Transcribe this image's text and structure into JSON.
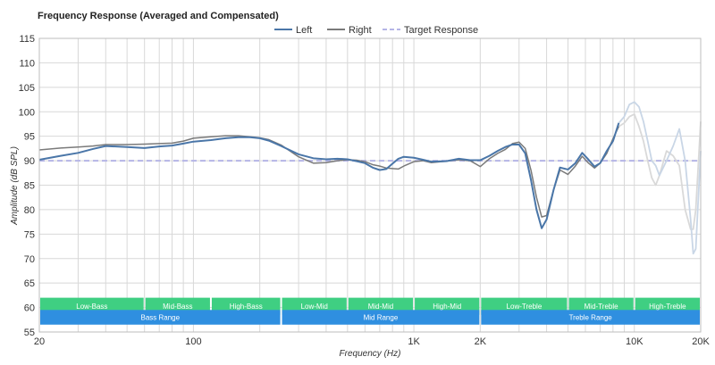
{
  "chart_data": {
    "type": "line",
    "title": "Frequency Response (Averaged and Compensated)",
    "xlabel": "Frequency (Hz)",
    "ylabel": "Amplitude (dB SPL)",
    "x_scale": "log",
    "xlim": [
      20,
      20000
    ],
    "ylim": [
      55,
      115
    ],
    "grid": true,
    "legend_position": "top-center",
    "x_tick_labels": [
      {
        "value": 20,
        "label": "20"
      },
      {
        "value": 100,
        "label": "100"
      },
      {
        "value": 1000,
        "label": "1K"
      },
      {
        "value": 2000,
        "label": "2K"
      },
      {
        "value": 10000,
        "label": "10K"
      },
      {
        "value": 20000,
        "label": "20K"
      }
    ],
    "y_ticks": [
      55,
      60,
      65,
      70,
      75,
      80,
      85,
      90,
      95,
      100,
      105,
      110,
      115
    ],
    "series": [
      {
        "name": "Left",
        "color": "#4a76a8",
        "faded_color": "#c9d6e6",
        "faded_from": 8500,
        "points": [
          [
            20,
            90.2
          ],
          [
            25,
            91
          ],
          [
            30,
            91.6
          ],
          [
            35,
            92.4
          ],
          [
            40,
            93
          ],
          [
            50,
            92.8
          ],
          [
            60,
            92.6
          ],
          [
            70,
            92.9
          ],
          [
            80,
            93.1
          ],
          [
            90,
            93.5
          ],
          [
            100,
            93.9
          ],
          [
            120,
            94.2
          ],
          [
            140,
            94.6
          ],
          [
            160,
            94.8
          ],
          [
            180,
            94.8
          ],
          [
            200,
            94.6
          ],
          [
            220,
            94.1
          ],
          [
            250,
            93
          ],
          [
            300,
            91.3
          ],
          [
            350,
            90.5
          ],
          [
            400,
            90.3
          ],
          [
            450,
            90.4
          ],
          [
            500,
            90.3
          ],
          [
            550,
            89.9
          ],
          [
            600,
            89.5
          ],
          [
            650,
            88.6
          ],
          [
            700,
            88.1
          ],
          [
            750,
            88.3
          ],
          [
            800,
            89.4
          ],
          [
            850,
            90.4
          ],
          [
            900,
            90.8
          ],
          [
            1000,
            90.6
          ],
          [
            1100,
            90.2
          ],
          [
            1200,
            89.8
          ],
          [
            1400,
            89.9
          ],
          [
            1600,
            90.4
          ],
          [
            1800,
            90.1
          ],
          [
            2000,
            90.1
          ],
          [
            2200,
            91
          ],
          [
            2400,
            92
          ],
          [
            2600,
            92.8
          ],
          [
            2800,
            93.3
          ],
          [
            3000,
            93.3
          ],
          [
            3200,
            91.5
          ],
          [
            3400,
            86
          ],
          [
            3600,
            80
          ],
          [
            3800,
            76.2
          ],
          [
            4000,
            78
          ],
          [
            4300,
            84
          ],
          [
            4600,
            88.6
          ],
          [
            5000,
            88.2
          ],
          [
            5400,
            89.5
          ],
          [
            5800,
            91.6
          ],
          [
            6200,
            90.2
          ],
          [
            6600,
            88.8
          ],
          [
            7000,
            89.5
          ],
          [
            7500,
            92
          ],
          [
            8000,
            94
          ],
          [
            8500,
            97.7
          ],
          [
            9000,
            99
          ],
          [
            9500,
            101.5
          ],
          [
            10000,
            102
          ],
          [
            10500,
            101
          ],
          [
            11000,
            98
          ],
          [
            11500,
            94
          ],
          [
            12000,
            90
          ],
          [
            12500,
            89
          ],
          [
            13000,
            87
          ],
          [
            14000,
            90
          ],
          [
            15000,
            93
          ],
          [
            16000,
            96.5
          ],
          [
            17000,
            90
          ],
          [
            18000,
            78
          ],
          [
            18500,
            71
          ],
          [
            19000,
            72
          ],
          [
            20000,
            92
          ]
        ]
      },
      {
        "name": "Right",
        "color": "#7a7a7a",
        "faded_color": "#d9d9d9",
        "faded_from": 8500,
        "points": [
          [
            20,
            92.2
          ],
          [
            25,
            92.6
          ],
          [
            30,
            92.8
          ],
          [
            35,
            93
          ],
          [
            40,
            93.3
          ],
          [
            50,
            93.3
          ],
          [
            60,
            93.4
          ],
          [
            70,
            93.5
          ],
          [
            80,
            93.6
          ],
          [
            90,
            94
          ],
          [
            100,
            94.6
          ],
          [
            120,
            94.9
          ],
          [
            140,
            95.1
          ],
          [
            160,
            95.1
          ],
          [
            180,
            94.9
          ],
          [
            200,
            94.7
          ],
          [
            220,
            94.3
          ],
          [
            250,
            93.2
          ],
          [
            300,
            90.8
          ],
          [
            350,
            89.5
          ],
          [
            400,
            89.6
          ],
          [
            450,
            90
          ],
          [
            500,
            90.2
          ],
          [
            550,
            90.1
          ],
          [
            600,
            89.8
          ],
          [
            650,
            89.2
          ],
          [
            700,
            88.9
          ],
          [
            750,
            88.5
          ],
          [
            800,
            88.4
          ],
          [
            850,
            88.3
          ],
          [
            900,
            88.9
          ],
          [
            1000,
            89.8
          ],
          [
            1100,
            90
          ],
          [
            1200,
            89.6
          ],
          [
            1400,
            89.9
          ],
          [
            1600,
            90.2
          ],
          [
            1800,
            90
          ],
          [
            2000,
            88.8
          ],
          [
            2200,
            90.4
          ],
          [
            2400,
            91.5
          ],
          [
            2600,
            92.3
          ],
          [
            2800,
            93.5
          ],
          [
            3000,
            93.8
          ],
          [
            3200,
            92.5
          ],
          [
            3400,
            88
          ],
          [
            3600,
            82.5
          ],
          [
            3800,
            78.5
          ],
          [
            4000,
            78.8
          ],
          [
            4300,
            84
          ],
          [
            4600,
            88.1
          ],
          [
            5000,
            87.2
          ],
          [
            5400,
            88.9
          ],
          [
            5800,
            90.9
          ],
          [
            6200,
            89.5
          ],
          [
            6600,
            88.5
          ],
          [
            7000,
            89.5
          ],
          [
            7500,
            91.5
          ],
          [
            8000,
            94.5
          ],
          [
            8500,
            97
          ],
          [
            9000,
            97.7
          ],
          [
            9500,
            99
          ],
          [
            10000,
            99.5
          ],
          [
            10500,
            97
          ],
          [
            11000,
            94
          ],
          [
            11500,
            90
          ],
          [
            12000,
            86.5
          ],
          [
            12500,
            85
          ],
          [
            13000,
            87
          ],
          [
            14000,
            92
          ],
          [
            15000,
            91
          ],
          [
            16000,
            89
          ],
          [
            17000,
            80
          ],
          [
            18000,
            76
          ],
          [
            18500,
            76
          ],
          [
            19000,
            80
          ],
          [
            20000,
            98
          ]
        ]
      },
      {
        "name": "Target Response",
        "color": "#b5b5e6",
        "dashed": true,
        "points": [
          [
            20,
            90
          ],
          [
            20000,
            90
          ]
        ]
      }
    ],
    "range_bands": {
      "sub_ranges": [
        {
          "label": "Low-Bass",
          "from": 20,
          "to": 60,
          "color": "#3fcf82"
        },
        {
          "label": "Mid-Bass",
          "from": 60,
          "to": 120,
          "color": "#3fcf82"
        },
        {
          "label": "High-Bass",
          "from": 120,
          "to": 250,
          "color": "#3fcf82"
        },
        {
          "label": "Low-Mid",
          "from": 250,
          "to": 500,
          "color": "#3fcf82"
        },
        {
          "label": "Mid-Mid",
          "from": 500,
          "to": 1000,
          "color": "#3fcf82"
        },
        {
          "label": "High-Mid",
          "from": 1000,
          "to": 2000,
          "color": "#3fcf82"
        },
        {
          "label": "Low-Treble",
          "from": 2000,
          "to": 5000,
          "color": "#3fcf82"
        },
        {
          "label": "Mid-Treble",
          "from": 5000,
          "to": 10000,
          "color": "#3fcf82"
        },
        {
          "label": "High-Treble",
          "from": 10000,
          "to": 20000,
          "color": "#3fcf82"
        }
      ],
      "main_ranges": [
        {
          "label": "Bass Range",
          "from": 20,
          "to": 250,
          "color": "#2f8fe0"
        },
        {
          "label": "Mid Range",
          "from": 250,
          "to": 2000,
          "color": "#2f8fe0"
        },
        {
          "label": "Treble Range",
          "from": 2000,
          "to": 20000,
          "color": "#2f8fe0"
        }
      ],
      "sub_y": [
        58.5,
        62
      ],
      "main_y": [
        56.5,
        59.5
      ]
    }
  }
}
